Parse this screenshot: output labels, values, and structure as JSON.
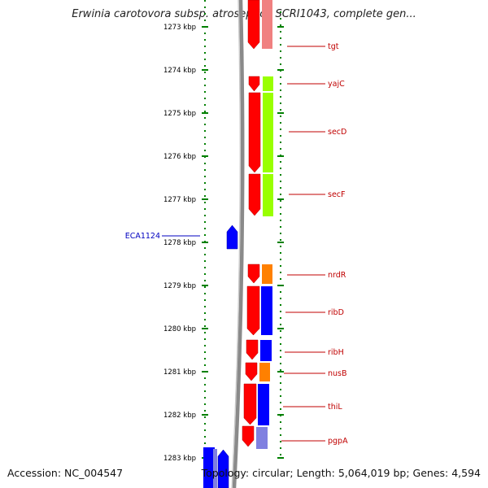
{
  "title": "Erwinia carotovora subsp. atroseptica SCRI1043, complete gen...",
  "footer": {
    "accession": "Accession: NC_004547",
    "summary": "Topology: circular; Length: 5,064,019 bp; Genes: 4,594"
  },
  "ticks": [
    "1273 kbp",
    "1274 kbp",
    "1275 kbp",
    "1276 kbp",
    "1277 kbp",
    "1278 kbp",
    "1279 kbp",
    "1280 kbp",
    "1281 kbp",
    "1282 kbp",
    "1283 kbp"
  ],
  "genes_right": [
    "tgt",
    "yajC",
    "secD",
    "secF",
    "nrdR",
    "ribD",
    "ribH",
    "nusB",
    "thiL",
    "pgpA"
  ],
  "genes_left": [
    "ECA1124"
  ],
  "colors": {
    "forward_gene": "#ff0000",
    "reverse_gene": "#0000ff",
    "ruler": "#008000",
    "cog_pink": "#f08080",
    "cog_green": "#99ff00",
    "cog_orange": "#ff8000",
    "cog_blue": "#0000ff",
    "cog_purple": "#8080e0",
    "label_red": "#c00000",
    "label_blue": "#0000c0"
  }
}
